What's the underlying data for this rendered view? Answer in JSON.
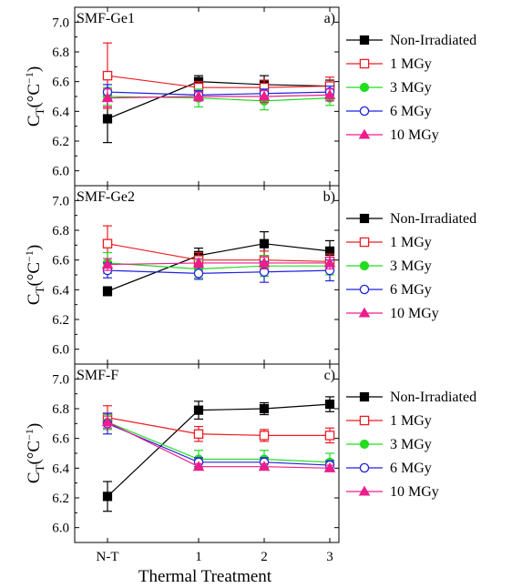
{
  "figure": {
    "xlabel": "Thermal Treatment",
    "ylabel_main": "C",
    "ylabel_sub": "T",
    "ylabel_unit": "(°C",
    "ylabel_exp": "−1",
    "ylabel_close": ")"
  },
  "chart_data": [
    {
      "type": "line",
      "fiber": "SMF-Ge1",
      "panel_letter": "a)",
      "categories": [
        "N-T",
        "1",
        "2",
        "3"
      ],
      "ylim": [
        5.9,
        7.1
      ],
      "yticks": [
        "6.0",
        "6.2",
        "6.4",
        "6.6",
        "6.8",
        "7.0"
      ],
      "grid": false,
      "legend_position": "right",
      "series": [
        {
          "name": "Non-Irradiated",
          "color": "#000000",
          "marker": "filled-square",
          "values": [
            6.35,
            6.6,
            6.58,
            6.57
          ],
          "errors": [
            0.16,
            0.04,
            0.06,
            0.04
          ]
        },
        {
          "name": "1 MGy",
          "color": "#ee1c24",
          "marker": "open-square",
          "values": [
            6.64,
            6.56,
            6.56,
            6.57
          ],
          "errors": [
            0.22,
            0.04,
            0.05,
            0.06
          ]
        },
        {
          "name": "3 MGy",
          "color": "#22dd22",
          "marker": "filled-circle",
          "values": [
            6.5,
            6.49,
            6.47,
            6.49
          ],
          "errors": [
            0.06,
            0.06,
            0.06,
            0.05
          ]
        },
        {
          "name": "6 MGy",
          "color": "#2222dd",
          "marker": "open-circle",
          "values": [
            6.53,
            6.51,
            6.52,
            6.53
          ],
          "errors": [
            0.05,
            0.03,
            0.03,
            0.04
          ]
        },
        {
          "name": "10 MGy",
          "color": "#ee1c8c",
          "marker": "filled-triangle",
          "values": [
            6.49,
            6.5,
            6.5,
            6.51
          ],
          "errors": [
            0.06,
            0.03,
            0.04,
            0.04
          ]
        }
      ]
    },
    {
      "type": "line",
      "fiber": "SMF-Ge2",
      "panel_letter": "b)",
      "categories": [
        "N-T",
        "1",
        "2",
        "3"
      ],
      "ylim": [
        5.9,
        7.1
      ],
      "yticks": [
        "6.0",
        "6.2",
        "6.4",
        "6.6",
        "6.8",
        "7.0"
      ],
      "grid": false,
      "legend_position": "right",
      "series": [
        {
          "name": "Non-Irradiated",
          "color": "#000000",
          "marker": "filled-square",
          "values": [
            6.39,
            6.63,
            6.71,
            6.66
          ],
          "errors": [
            0.03,
            0.05,
            0.08,
            0.07
          ]
        },
        {
          "name": "1 MGy",
          "color": "#ee1c24",
          "marker": "open-square",
          "values": [
            6.71,
            6.6,
            6.6,
            6.59
          ],
          "errors": [
            0.12,
            0.05,
            0.06,
            0.05
          ]
        },
        {
          "name": "3 MGy",
          "color": "#22dd22",
          "marker": "filled-circle",
          "values": [
            6.58,
            6.54,
            6.56,
            6.56
          ],
          "errors": [
            0.07,
            0.06,
            0.07,
            0.06
          ]
        },
        {
          "name": "6 MGy",
          "color": "#2222dd",
          "marker": "open-circle",
          "values": [
            6.53,
            6.51,
            6.52,
            6.53
          ],
          "errors": [
            0.05,
            0.04,
            0.07,
            0.07
          ]
        },
        {
          "name": "10 MGy",
          "color": "#ee1c8c",
          "marker": "filled-triangle",
          "values": [
            6.57,
            6.58,
            6.58,
            6.58
          ],
          "errors": [
            0.04,
            0.03,
            0.04,
            0.04
          ]
        }
      ]
    },
    {
      "type": "line",
      "fiber": "SMF-F",
      "panel_letter": "c)",
      "categories": [
        "N-T",
        "1",
        "2",
        "3"
      ],
      "ylim": [
        5.9,
        7.1
      ],
      "yticks": [
        "6.0",
        "6.2",
        "6.4",
        "6.6",
        "6.8",
        "7.0"
      ],
      "grid": false,
      "legend_position": "right",
      "series": [
        {
          "name": "Non-Irradiated",
          "color": "#000000",
          "marker": "filled-square",
          "values": [
            6.21,
            6.79,
            6.8,
            6.83
          ],
          "errors": [
            0.1,
            0.06,
            0.04,
            0.05
          ]
        },
        {
          "name": "1 MGy",
          "color": "#ee1c24",
          "marker": "open-square",
          "values": [
            6.74,
            6.63,
            6.62,
            6.62
          ],
          "errors": [
            0.08,
            0.05,
            0.04,
            0.05
          ]
        },
        {
          "name": "3 MGy",
          "color": "#22dd22",
          "marker": "filled-circle",
          "values": [
            6.71,
            6.46,
            6.46,
            6.44
          ],
          "errors": [
            0.05,
            0.06,
            0.06,
            0.06
          ]
        },
        {
          "name": "6 MGy",
          "color": "#2222dd",
          "marker": "open-circle",
          "values": [
            6.7,
            6.44,
            6.44,
            6.42
          ],
          "errors": [
            0.07,
            0.03,
            0.03,
            0.03
          ]
        },
        {
          "name": "10 MGy",
          "color": "#ee1c8c",
          "marker": "filled-triangle",
          "values": [
            6.71,
            6.41,
            6.41,
            6.4
          ],
          "errors": [
            0.04,
            0.02,
            0.02,
            0.02
          ]
        }
      ]
    }
  ]
}
